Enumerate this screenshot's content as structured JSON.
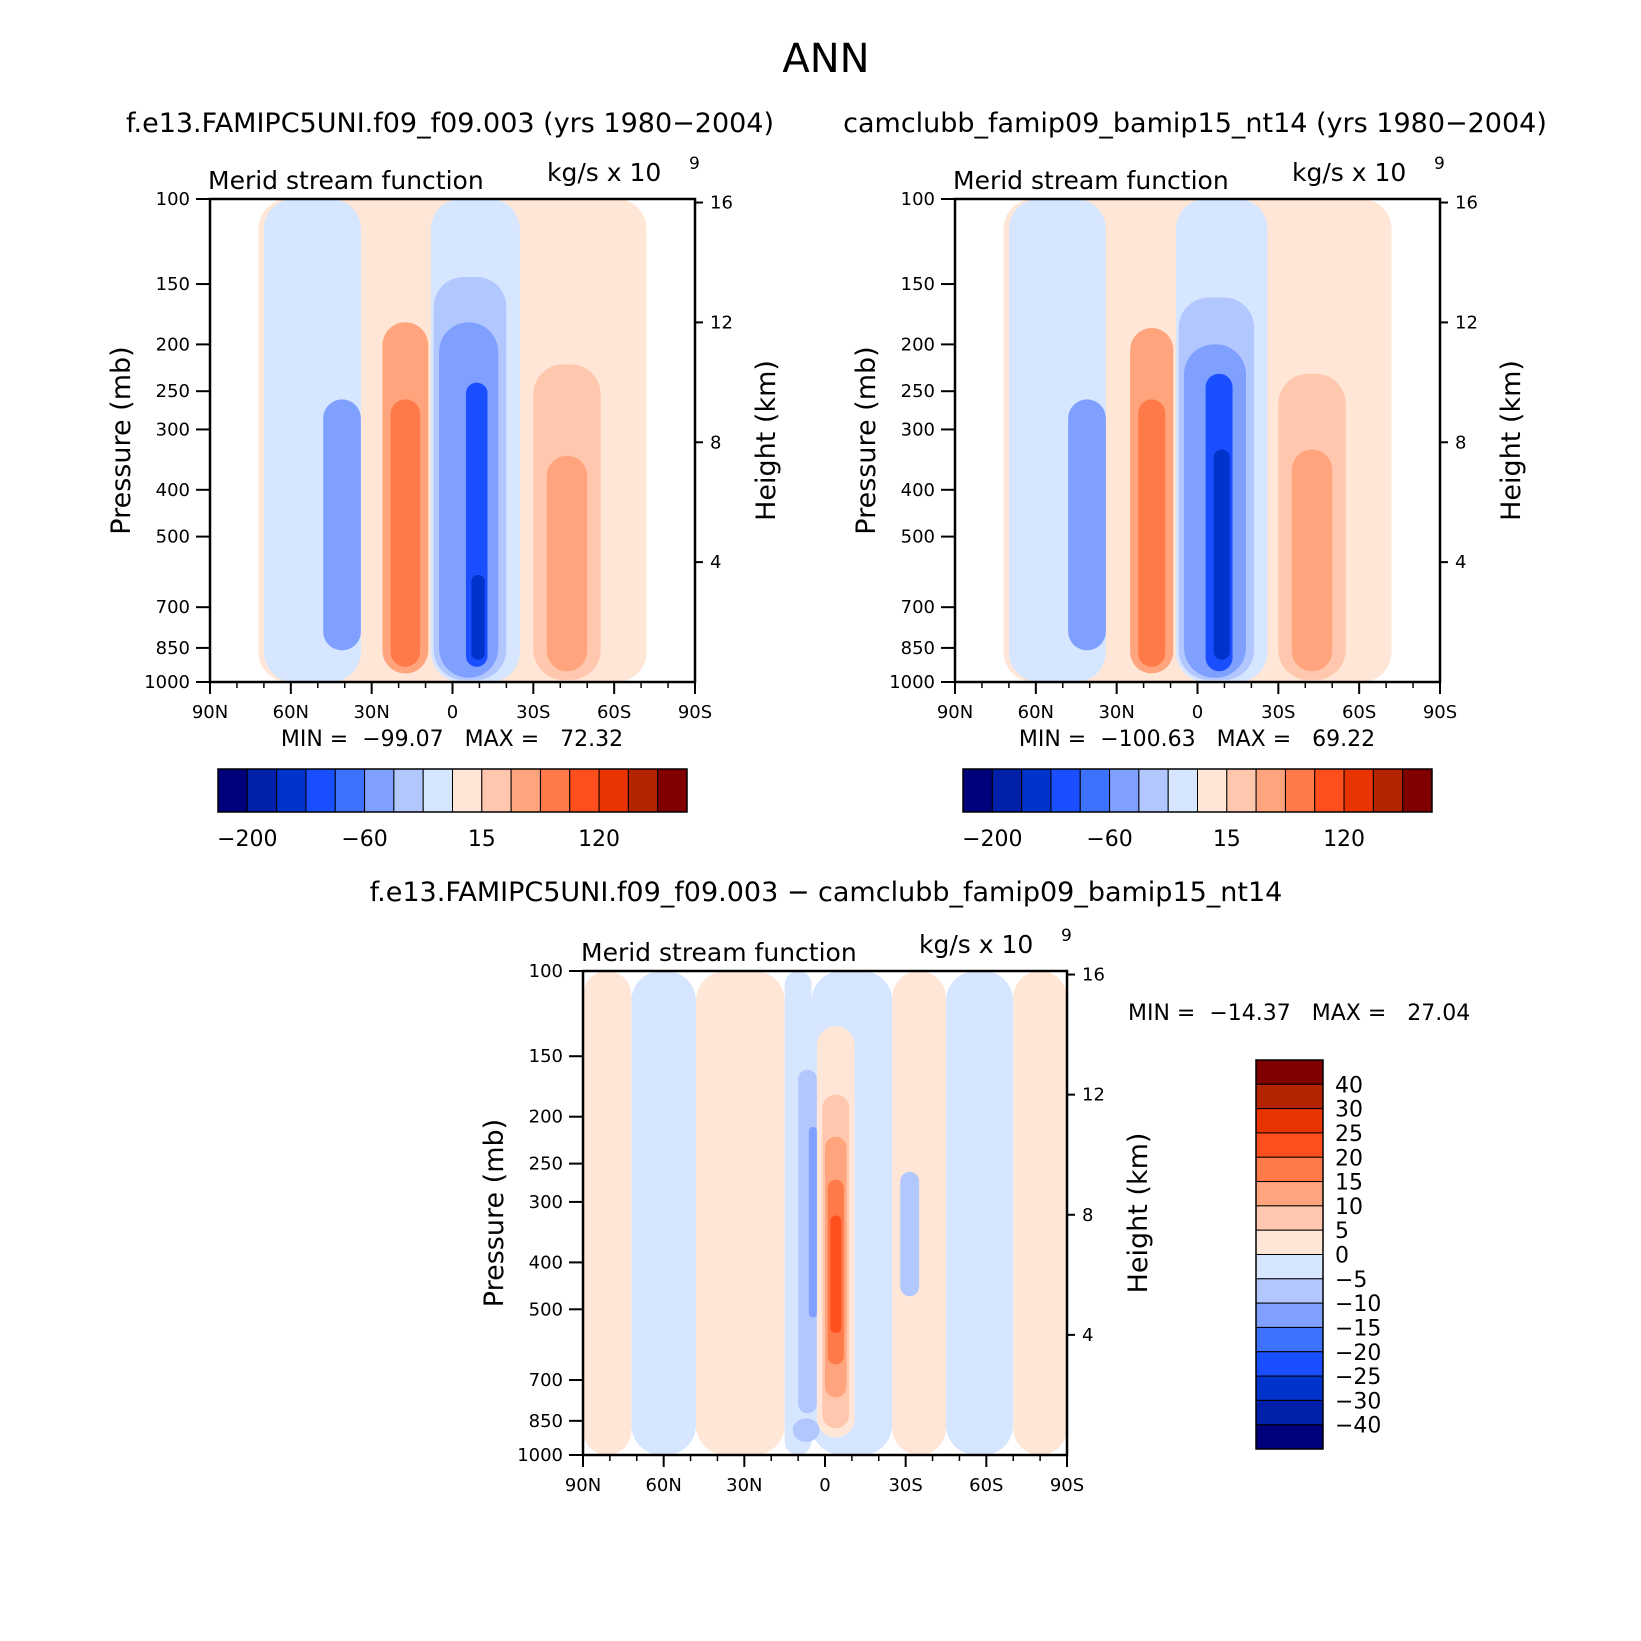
{
  "figure": {
    "season": "ANN",
    "diff_header": "f.e13.FAMIPC5UNI.f09_f09.003 − camclubb_famip09_bamip15_nt14"
  },
  "axes": {
    "variable": "Merid stream function",
    "units": "kg/s x 10",
    "units_exp": "9",
    "left_label": "Pressure (mb)",
    "right_label": "Height (km)",
    "pressure_ticks": [
      "100",
      "150",
      "200",
      "250",
      "300",
      "400",
      "500",
      "700",
      "850",
      "1000"
    ],
    "height_ticks": [
      "16",
      "12",
      "8",
      "4"
    ],
    "lat_ticks": [
      "90N",
      "60N",
      "30N",
      "0",
      "30S",
      "60S",
      "90S"
    ]
  },
  "panels": {
    "p1": {
      "header": "f.e13.FAMIPC5UNI.f09_f09.003 (yrs 1980−2004)",
      "stats": "MIN =  −99.07   MAX =   72.32"
    },
    "p2": {
      "header": "camclubb_famip09_bamip15_nt14 (yrs 1980−2004)",
      "stats": "MIN =  −100.63   MAX =   69.22"
    },
    "p3": {
      "stats": "MIN =  −14.37   MAX =   27.04"
    }
  },
  "colorbars": {
    "main_labels": [
      "−200",
      "−60",
      "15",
      "120"
    ],
    "diff_labels": [
      "40",
      "30",
      "25",
      "20",
      "15",
      "10",
      "5",
      "0",
      "−5",
      "−10",
      "−15",
      "−20",
      "−25",
      "−30",
      "−40"
    ]
  },
  "colors": {
    "main_scale": [
      "#00007a",
      "#0020aa",
      "#0033cc",
      "#1a4fff",
      "#3d72ff",
      "#7fa0ff",
      "#b3c7ff",
      "#d6e6ff",
      "#ffe6d6",
      "#ffc8ae",
      "#ffa47c",
      "#ff7a48",
      "#ff4f1c",
      "#e83400",
      "#b52400",
      "#800000"
    ],
    "diff_scale": [
      "#800000",
      "#b52400",
      "#e83400",
      "#ff4f1c",
      "#ff7a48",
      "#ffa47c",
      "#ffc8ae",
      "#ffe6d6",
      "#d6e6ff",
      "#b3c7ff",
      "#7fa0ff",
      "#3d72ff",
      "#1a4fff",
      "#0033cc",
      "#0020aa",
      "#00007a"
    ]
  },
  "chart_data": [
    {
      "type": "heatmap",
      "title": "f.e13.FAMIPC5UNI.f09_f09.003 (yrs 1980−2004)",
      "xlabel": "",
      "ylabel": "Pressure (mb)",
      "y2label": "Height (km)",
      "x_categories": [
        "90N",
        "60N",
        "30N",
        "0",
        "30S",
        "60S",
        "90S"
      ],
      "ylim": [
        1000,
        100
      ],
      "yscale": "log",
      "min": -99.07,
      "max": 72.32,
      "cells": [
        {
          "lat": [
            72,
            -72
          ],
          "p": [
            1000,
            100
          ],
          "value": 7
        },
        {
          "lat": [
            70,
            34
          ],
          "p": [
            1000,
            100
          ],
          "value": -5
        },
        {
          "lat": [
            48,
            34
          ],
          "p": [
            860,
            260
          ],
          "value": -25
        },
        {
          "lat": [
            28,
            7
          ],
          "p": [
            990,
            140
          ],
          "value": 10
        },
        {
          "lat": [
            26,
            9
          ],
          "p": [
            960,
            180
          ],
          "value": 30
        },
        {
          "lat": [
            23,
            12
          ],
          "p": [
            930,
            260
          ],
          "value": 60
        },
        {
          "lat": [
            8,
            -25
          ],
          "p": [
            1000,
            100
          ],
          "value": -5
        },
        {
          "lat": [
            7,
            -20
          ],
          "p": [
            990,
            145
          ],
          "value": -20
        },
        {
          "lat": [
            5,
            -17
          ],
          "p": [
            980,
            180
          ],
          "value": -40
        },
        {
          "lat": [
            -5,
            -13
          ],
          "p": [
            930,
            240
          ],
          "value": -80
        },
        {
          "lat": [
            -7,
            -12
          ],
          "p": [
            900,
            600
          ],
          "value": -99
        },
        {
          "lat": [
            -30,
            -55
          ],
          "p": [
            990,
            220
          ],
          "value": 20
        },
        {
          "lat": [
            -35,
            -50
          ],
          "p": [
            950,
            340
          ],
          "value": 45
        }
      ]
    },
    {
      "type": "heatmap",
      "title": "camclubb_famip09_bamip15_nt14 (yrs 1980−2004)",
      "xlabel": "",
      "ylabel": "Pressure (mb)",
      "y2label": "Height (km)",
      "x_categories": [
        "90N",
        "60N",
        "30N",
        "0",
        "30S",
        "60S",
        "90S"
      ],
      "ylim": [
        1000,
        100
      ],
      "yscale": "log",
      "min": -100.63,
      "max": 69.22,
      "cells": [
        {
          "lat": [
            72,
            -72
          ],
          "p": [
            1000,
            100
          ],
          "value": 7
        },
        {
          "lat": [
            70,
            34
          ],
          "p": [
            1000,
            100
          ],
          "value": -5
        },
        {
          "lat": [
            48,
            34
          ],
          "p": [
            860,
            260
          ],
          "value": -25
        },
        {
          "lat": [
            27,
            7
          ],
          "p": [
            990,
            140
          ],
          "value": 10
        },
        {
          "lat": [
            25,
            9
          ],
          "p": [
            960,
            185
          ],
          "value": 30
        },
        {
          "lat": [
            22,
            12
          ],
          "p": [
            930,
            260
          ],
          "value": 60
        },
        {
          "lat": [
            8,
            -26
          ],
          "p": [
            1000,
            100
          ],
          "value": -5
        },
        {
          "lat": [
            7,
            -21
          ],
          "p": [
            990,
            160
          ],
          "value": -20
        },
        {
          "lat": [
            5,
            -18
          ],
          "p": [
            980,
            200
          ],
          "value": -40
        },
        {
          "lat": [
            -3,
            -13
          ],
          "p": [
            950,
            230
          ],
          "value": -80
        },
        {
          "lat": [
            -6,
            -12
          ],
          "p": [
            900,
            330
          ],
          "value": -100
        },
        {
          "lat": [
            -30,
            -55
          ],
          "p": [
            990,
            230
          ],
          "value": 20
        },
        {
          "lat": [
            -35,
            -50
          ],
          "p": [
            950,
            330
          ],
          "value": 45
        }
      ]
    },
    {
      "type": "heatmap",
      "title": "f.e13.FAMIPC5UNI.f09_f09.003 − camclubb_famip09_bamip15_nt14",
      "xlabel": "",
      "ylabel": "Pressure (mb)",
      "y2label": "Height (km)",
      "x_categories": [
        "90N",
        "60N",
        "30N",
        "0",
        "30S",
        "60S",
        "90S"
      ],
      "ylim": [
        1000,
        100
      ],
      "yscale": "log",
      "min": -14.37,
      "max": 27.04,
      "cells": [
        {
          "lat": [
            90,
            72
          ],
          "p": [
            1000,
            100
          ],
          "value": 2
        },
        {
          "lat": [
            72,
            48
          ],
          "p": [
            1000,
            100
          ],
          "value": -2
        },
        {
          "lat": [
            48,
            15
          ],
          "p": [
            1000,
            100
          ],
          "value": 2
        },
        {
          "lat": [
            15,
            5
          ],
          "p": [
            1000,
            100
          ],
          "value": -2
        },
        {
          "lat": [
            5,
            -25
          ],
          "p": [
            1000,
            100
          ],
          "value": -2
        },
        {
          "lat": [
            -25,
            -45
          ],
          "p": [
            1000,
            100
          ],
          "value": 2
        },
        {
          "lat": [
            -45,
            -70
          ],
          "p": [
            1000,
            100
          ],
          "value": -2
        },
        {
          "lat": [
            -70,
            -90
          ],
          "p": [
            1000,
            100
          ],
          "value": 2
        },
        {
          "lat": [
            10,
            3
          ],
          "p": [
            820,
            160
          ],
          "value": -7
        },
        {
          "lat": [
            6,
            3
          ],
          "p": [
            520,
            210
          ],
          "value": -12
        },
        {
          "lat": [
            3,
            -11
          ],
          "p": [
            920,
            130
          ],
          "value": 3
        },
        {
          "lat": [
            1,
            -9
          ],
          "p": [
            880,
            180
          ],
          "value": 8
        },
        {
          "lat": [
            0,
            -8
          ],
          "p": [
            760,
            220
          ],
          "value": 13
        },
        {
          "lat": [
            -1,
            -7
          ],
          "p": [
            650,
            270
          ],
          "value": 18
        },
        {
          "lat": [
            -2,
            -6
          ],
          "p": [
            560,
            320
          ],
          "value": 23
        },
        {
          "lat": [
            -28,
            -35
          ],
          "p": [
            470,
            260
          ],
          "value": -7
        },
        {
          "lat": [
            12,
            2
          ],
          "p": [
            940,
            840
          ],
          "value": -8
        }
      ]
    }
  ]
}
